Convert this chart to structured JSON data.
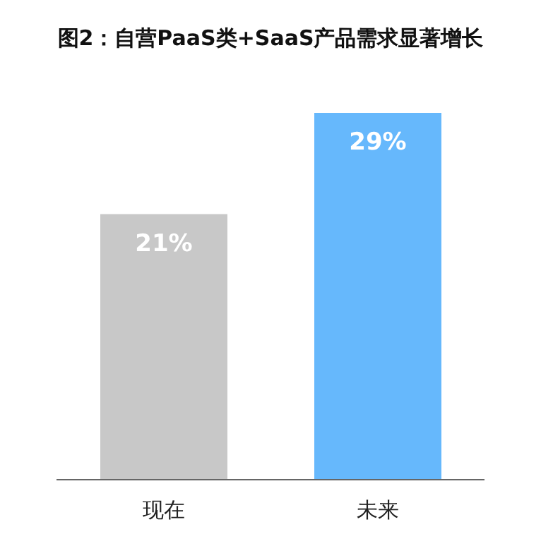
{
  "chart_data": {
    "type": "bar",
    "title": "图2：自营PaaS类+SaaS产品需求显著增长",
    "categories": [
      "现在",
      "未来"
    ],
    "values": [
      21,
      29
    ],
    "value_labels": [
      "21%",
      "29%"
    ],
    "colors": [
      "#c8c8c8",
      "#66b8fc"
    ],
    "grid": false,
    "legend": false
  }
}
